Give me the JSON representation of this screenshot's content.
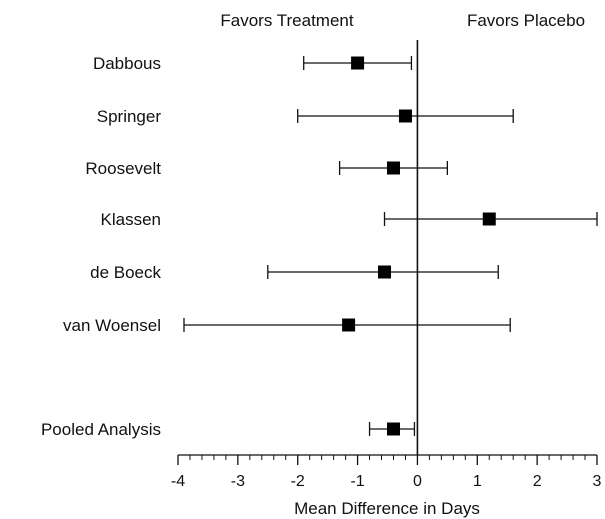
{
  "chart_data": {
    "type": "forest",
    "header_left": "Favors Treatment",
    "header_right": "Favors Placebo",
    "xlabel": "Mean Difference in Days",
    "xlim": [
      -4,
      3
    ],
    "xticks": [
      -4,
      -3,
      -2,
      -1,
      0,
      1,
      2,
      3
    ],
    "reference_line": 0,
    "studies": [
      {
        "label": "Dabbous",
        "estimate": -1.0,
        "lower": -1.9,
        "upper": -0.1
      },
      {
        "label": "Springer",
        "estimate": -0.2,
        "lower": -2.0,
        "upper": 1.6
      },
      {
        "label": "Roosevelt",
        "estimate": -0.4,
        "lower": -1.3,
        "upper": 0.5
      },
      {
        "label": "Klassen",
        "estimate": 1.2,
        "lower": -0.55,
        "upper": 3.0
      },
      {
        "label": "de Boeck",
        "estimate": -0.55,
        "lower": -2.5,
        "upper": 1.35
      },
      {
        "label": "van Woensel",
        "estimate": -1.15,
        "lower": -3.9,
        "upper": 1.55
      }
    ],
    "pooled": {
      "label": "Pooled Analysis",
      "estimate": -0.4,
      "lower": -0.8,
      "upper": -0.05
    }
  }
}
